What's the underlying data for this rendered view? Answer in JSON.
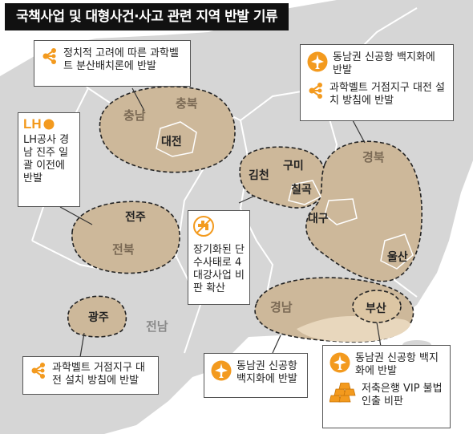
{
  "title": "국책사업 및 대형사건·사고 관련 지역 반발 기류",
  "colors": {
    "sea": "#ffffff",
    "land": "#d6d6d6",
    "boundary": "#ffffff",
    "highlight": "#cdb89a",
    "highlight_light": "#e8d7bd",
    "accent_orange": "#f39a1e",
    "dashed_outline": "#222222"
  },
  "region_labels": {
    "chungnam": "충남",
    "chungbuk": "충북",
    "daejeon": "대전",
    "gimcheon": "김천",
    "gumi": "구미",
    "chilgok": "칠곡",
    "gyeongbuk": "경북",
    "daegu": "대구",
    "ulsan": "울산",
    "jeonju": "전주",
    "jeonbuk": "전북",
    "gwangju": "광주",
    "jeonnam": "전남",
    "gyeongnam": "경남",
    "busan": "부산"
  },
  "callouts": {
    "science_belt_split": {
      "icon": "network-icon",
      "text": "정치적 고려에 따른 과학벨트 분산배치론에 반발"
    },
    "lh_relocation": {
      "icon": "lh-logo",
      "logo_text": "LH",
      "text": "LH공사 경남 진주 일괄 이전에 반발"
    },
    "gyeongbuk_box": {
      "items": [
        {
          "icon": "airplane-icon",
          "text": "동남권 신공항 백지화에 반발"
        },
        {
          "icon": "network-icon",
          "text": "과학벨트 거점지구 대전 설치 방침에 반발"
        }
      ]
    },
    "water_outage": {
      "icon": "faucet-icon",
      "text": "장기화된 단수사태로 4대강사업 비판 확산"
    },
    "gwangju_box": {
      "icon": "network-icon",
      "text": "과학벨트 거점지구 대전 설치 방침에 반발"
    },
    "gyeongnam_box": {
      "icon": "airplane-icon",
      "text": "동남권 신공항 백지화에 반발"
    },
    "busan_box": {
      "items": [
        {
          "icon": "airplane-icon",
          "text": "동남권 신공항 백지화에 반발"
        },
        {
          "icon": "gold-bars-icon",
          "text": "저축은행 VIP 불법인출 비판"
        }
      ]
    }
  }
}
